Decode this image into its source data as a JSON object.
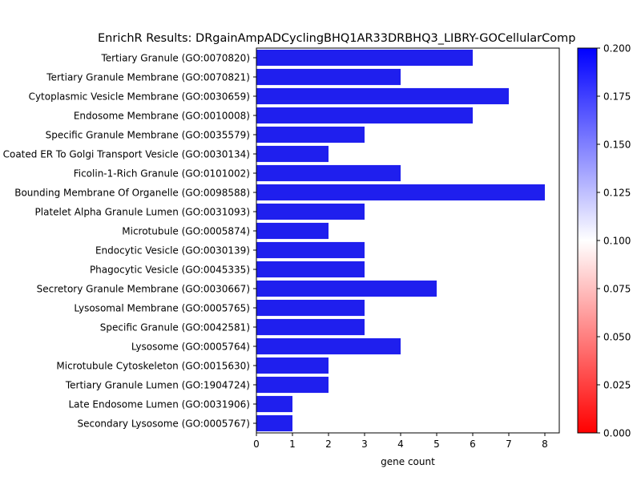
{
  "chart_data": {
    "type": "bar",
    "orientation": "horizontal",
    "title": "EnrichR Results: DRgainAmpADCyclingBHQ1AR33DRBHQ3_LIBRY-GOCellularComp",
    "xlabel": "gene count",
    "ylabel": "",
    "xlim": [
      0,
      8.4
    ],
    "xticks": [
      0,
      1,
      2,
      3,
      4,
      5,
      6,
      7,
      8
    ],
    "grid": false,
    "bar_color": "#1f1fee",
    "categories": [
      "Tertiary Granule (GO:0070820)",
      "Tertiary Granule Membrane (GO:0070821)",
      "Cytoplasmic Vesicle Membrane (GO:0030659)",
      "Endosome Membrane (GO:0010008)",
      "Specific Granule Membrane (GO:0035579)",
      "Coated ER To Golgi Transport Vesicle (GO:0030134)",
      "Ficolin-1-Rich Granule (GO:0101002)",
      "Bounding Membrane Of Organelle (GO:0098588)",
      "Platelet Alpha Granule Lumen (GO:0031093)",
      "Microtubule (GO:0005874)",
      "Endocytic Vesicle (GO:0030139)",
      "Phagocytic Vesicle (GO:0045335)",
      "Secretory Granule Membrane (GO:0030667)",
      "Lysosomal Membrane (GO:0005765)",
      "Specific Granule (GO:0042581)",
      "Lysosome (GO:0005764)",
      "Microtubule Cytoskeleton (GO:0015630)",
      "Tertiary Granule Lumen (GO:1904724)",
      "Late Endosome Lumen (GO:0031906)",
      "Secondary Lysosome (GO:0005767)"
    ],
    "values": [
      6,
      4,
      7,
      6,
      3,
      2,
      4,
      8,
      3,
      2,
      3,
      3,
      5,
      3,
      3,
      4,
      2,
      2,
      1,
      1
    ],
    "colorbar": {
      "min": 0,
      "max": 0.2,
      "ticks": [
        "0.000",
        "0.025",
        "0.050",
        "0.075",
        "0.100",
        "0.125",
        "0.150",
        "0.175",
        "0.200"
      ],
      "colors": [
        "#ff0000",
        "#ffffff",
        "#0000ff"
      ]
    }
  }
}
